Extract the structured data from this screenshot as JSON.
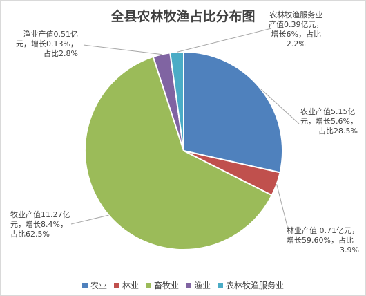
{
  "chart_data": {
    "type": "pie",
    "title": "全县农林牧渔占比分布图",
    "categories": [
      "农业",
      "林业",
      "畜牧业",
      "渔业",
      "农林牧渔服务业"
    ],
    "values": [
      28.5,
      3.9,
      62.5,
      2.8,
      2.2
    ],
    "colors": [
      "#4f81bd",
      "#c0504d",
      "#9bbb59",
      "#8064a2",
      "#4bacc6"
    ],
    "data_labels": [
      [
        "农业产值5.15亿",
        "元，增长5.6%，",
        "占比28.5%"
      ],
      [
        "林业产值 0.71亿元，",
        "增长59.60%，占比",
        "3.9%"
      ],
      [
        "牧业产值11.27亿",
        "元，增长8.4%，",
        "占比62.5%"
      ],
      [
        "渔业产值0.51亿",
        "元，增长0.13%，",
        "占比2.8%"
      ],
      [
        "农林牧渔服务业",
        "产值0.39亿元，",
        "增长6%，占比",
        "2.2%"
      ]
    ],
    "legend": {
      "position": "bottom",
      "entries": [
        "农业",
        "林业",
        "畜牧业",
        "渔业",
        "农林牧渔服务业"
      ]
    }
  }
}
